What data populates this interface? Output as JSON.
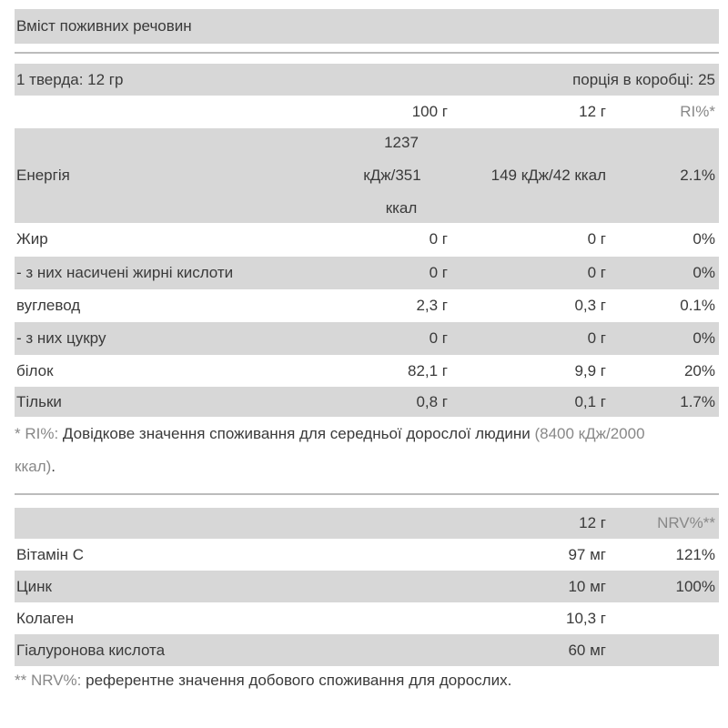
{
  "title": "Вміст поживних речовин",
  "serving": {
    "left": "1 тверда: 12 гр",
    "right": "порція в коробці: 25"
  },
  "table1": {
    "headers": [
      "100 г",
      "12 г",
      "RI%*"
    ],
    "energy": {
      "label": "Енергія",
      "per100": "1237 кДж/351",
      "per100_line1": "1237",
      "per100_line2": "кДж/351",
      "per100_line3": "ккал",
      "perServing": "149 кДж/42 ккал",
      "ri": "2.1%"
    },
    "rows": [
      {
        "label": "Жир",
        "per100": "0 г",
        "perServing": "0 г",
        "ri": "0%"
      },
      {
        "label": "- з них насичені жирні кислоти",
        "per100": "0 г",
        "perServing": "0 г",
        "ri": "0%"
      },
      {
        "label": "вуглевод",
        "per100": "2,3 г",
        "perServing": "0,3 г",
        "ri": "0.1%"
      },
      {
        "label": "- з них цукру",
        "per100": "0 г",
        "perServing": "0 г",
        "ri": "0%"
      },
      {
        "label": "білок",
        "per100": "82,1 г",
        "perServing": "9,9 г",
        "ri": "20%"
      },
      {
        "label": "Тільки",
        "per100": "0,8 г",
        "perServing": "0,1 г",
        "ri": "1.7%"
      }
    ]
  },
  "footnote1": {
    "prefix": "* RI%:",
    "text": " Довідкове значення споживання для середньої дорослої людини ",
    "paren": "(8400 кДж/2000 ккал)",
    "end": "."
  },
  "table2": {
    "headers": [
      "12 г",
      "NRV%**"
    ],
    "rows": [
      {
        "label": "Вітамін С",
        "amount": "97 мг",
        "nrv": "121%"
      },
      {
        "label": "Цинк",
        "amount": "10 мг",
        "nrv": "100%"
      },
      {
        "label": "Колаген",
        "amount": "10,3 г",
        "nrv": ""
      },
      {
        "label": "Гіалуронова кислота",
        "amount": "60 мг",
        "nrv": ""
      }
    ]
  },
  "footnote2": {
    "prefix": "** NRV%:",
    "text": " референтне значення добового споживання для дорослих."
  }
}
